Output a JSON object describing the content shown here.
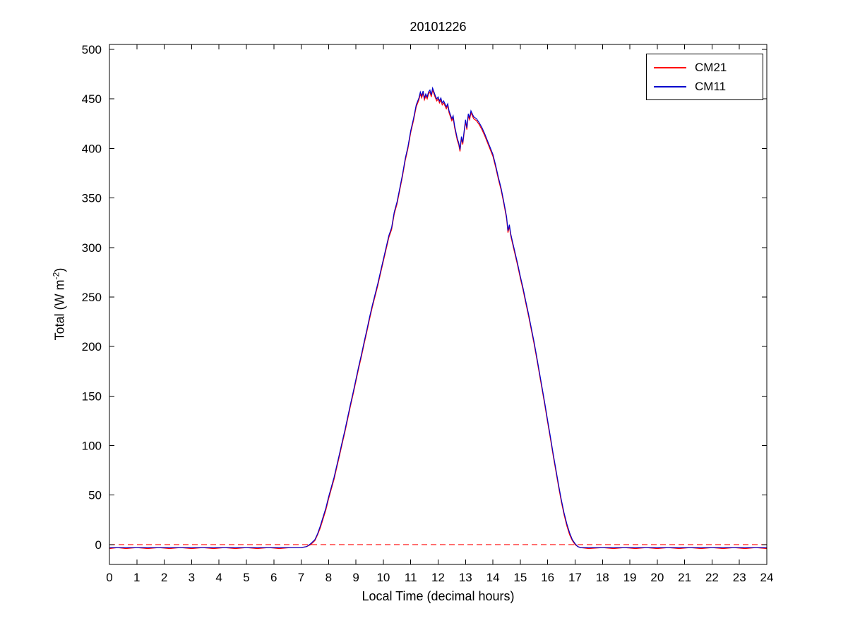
{
  "chart_data": {
    "type": "line",
    "title": "20101226",
    "xlabel": "Local Time (decimal hours)",
    "ylabel": "Total (W m^-2)",
    "ylabel_parts": {
      "prefix": "Total (W m",
      "sup": "-2",
      "suffix": ")"
    },
    "xlim": [
      0,
      24
    ],
    "ylim": [
      -20,
      505
    ],
    "xticks": [
      0,
      1,
      2,
      3,
      4,
      5,
      6,
      7,
      8,
      9,
      10,
      11,
      12,
      13,
      14,
      15,
      16,
      17,
      18,
      19,
      20,
      21,
      22,
      23,
      24
    ],
    "yticks": [
      0,
      50,
      100,
      150,
      200,
      250,
      300,
      350,
      400,
      450,
      500
    ],
    "grid": false,
    "background": "#ffffff",
    "axis_color": "#000000",
    "zero_line": {
      "y": 0,
      "color": "#ff0000",
      "style": "dashed"
    },
    "legend": {
      "position": "top-right",
      "border_color": "#000000",
      "entries": [
        {
          "label": "CM21",
          "color": "#ff0000"
        },
        {
          "label": "CM11",
          "color": "#0000cc"
        }
      ]
    },
    "series": [
      {
        "name": "CM21",
        "color": "#ff0000",
        "points": [
          [
            0,
            -4
          ],
          [
            0.3,
            -3
          ],
          [
            0.6,
            -4
          ],
          [
            1,
            -3
          ],
          [
            1.4,
            -4
          ],
          [
            1.8,
            -3
          ],
          [
            2.2,
            -4
          ],
          [
            2.6,
            -3
          ],
          [
            3,
            -4
          ],
          [
            3.4,
            -3
          ],
          [
            3.8,
            -4
          ],
          [
            4.2,
            -3
          ],
          [
            4.6,
            -4
          ],
          [
            5,
            -3
          ],
          [
            5.4,
            -4
          ],
          [
            5.8,
            -3
          ],
          [
            6.2,
            -4
          ],
          [
            6.6,
            -3
          ],
          [
            7,
            -3
          ],
          [
            7.2,
            -2
          ],
          [
            7.35,
            0
          ],
          [
            7.5,
            4
          ],
          [
            7.6,
            10
          ],
          [
            7.7,
            17
          ],
          [
            7.8,
            26
          ],
          [
            7.9,
            35
          ],
          [
            8,
            46
          ],
          [
            8.1,
            56
          ],
          [
            8.2,
            66
          ],
          [
            8.3,
            78
          ],
          [
            8.4,
            90
          ],
          [
            8.5,
            102
          ],
          [
            8.6,
            114
          ],
          [
            8.7,
            127
          ],
          [
            8.8,
            140
          ],
          [
            8.9,
            152
          ],
          [
            9,
            165
          ],
          [
            9.1,
            178
          ],
          [
            9.2,
            190
          ],
          [
            9.3,
            203
          ],
          [
            9.4,
            215
          ],
          [
            9.5,
            228
          ],
          [
            9.6,
            240
          ],
          [
            9.7,
            251
          ],
          [
            9.8,
            262
          ],
          [
            9.9,
            274
          ],
          [
            10,
            286
          ],
          [
            10.1,
            298
          ],
          [
            10.2,
            310
          ],
          [
            10.3,
            318
          ],
          [
            10.4,
            334
          ],
          [
            10.5,
            344
          ],
          [
            10.6,
            358
          ],
          [
            10.7,
            372
          ],
          [
            10.8,
            388
          ],
          [
            10.9,
            400
          ],
          [
            11,
            416
          ],
          [
            11.1,
            428
          ],
          [
            11.2,
            442
          ],
          [
            11.3,
            449
          ],
          [
            11.35,
            455
          ],
          [
            11.4,
            451
          ],
          [
            11.45,
            456
          ],
          [
            11.5,
            449
          ],
          [
            11.55,
            453
          ],
          [
            11.6,
            450
          ],
          [
            11.65,
            455
          ],
          [
            11.7,
            457
          ],
          [
            11.75,
            452
          ],
          [
            11.8,
            459
          ],
          [
            11.85,
            455
          ],
          [
            11.9,
            451
          ],
          [
            11.95,
            448
          ],
          [
            12,
            450
          ],
          [
            12.05,
            446
          ],
          [
            12.1,
            449
          ],
          [
            12.15,
            444
          ],
          [
            12.2,
            446
          ],
          [
            12.3,
            440
          ],
          [
            12.35,
            443
          ],
          [
            12.4,
            436
          ],
          [
            12.5,
            428
          ],
          [
            12.55,
            431
          ],
          [
            12.6,
            421
          ],
          [
            12.7,
            408
          ],
          [
            12.75,
            404
          ],
          [
            12.8,
            397
          ],
          [
            12.85,
            410
          ],
          [
            12.9,
            404
          ],
          [
            12.95,
            416
          ],
          [
            13,
            427
          ],
          [
            13.05,
            419
          ],
          [
            13.1,
            433
          ],
          [
            13.15,
            429
          ],
          [
            13.2,
            436
          ],
          [
            13.3,
            430
          ],
          [
            13.4,
            428
          ],
          [
            13.5,
            424
          ],
          [
            13.6,
            419
          ],
          [
            13.7,
            413
          ],
          [
            13.8,
            406
          ],
          [
            13.9,
            399
          ],
          [
            14,
            392
          ],
          [
            14.1,
            381
          ],
          [
            14.2,
            369
          ],
          [
            14.3,
            358
          ],
          [
            14.4,
            344
          ],
          [
            14.5,
            329
          ],
          [
            14.55,
            315
          ],
          [
            14.6,
            321
          ],
          [
            14.65,
            312
          ],
          [
            14.7,
            306
          ],
          [
            14.8,
            294
          ],
          [
            14.9,
            282
          ],
          [
            15,
            269
          ],
          [
            15.1,
            257
          ],
          [
            15.2,
            244
          ],
          [
            15.3,
            231
          ],
          [
            15.4,
            217
          ],
          [
            15.5,
            203
          ],
          [
            15.6,
            188
          ],
          [
            15.7,
            172
          ],
          [
            15.8,
            156
          ],
          [
            15.9,
            140
          ],
          [
            16,
            123
          ],
          [
            16.1,
            107
          ],
          [
            16.2,
            90
          ],
          [
            16.3,
            74
          ],
          [
            16.4,
            58
          ],
          [
            16.5,
            43
          ],
          [
            16.6,
            30
          ],
          [
            16.7,
            19
          ],
          [
            16.8,
            10
          ],
          [
            16.9,
            4
          ],
          [
            17,
            0
          ],
          [
            17.1,
            -2
          ],
          [
            17.2,
            -3
          ],
          [
            17.5,
            -4
          ],
          [
            18,
            -3
          ],
          [
            18.4,
            -4
          ],
          [
            18.8,
            -3
          ],
          [
            19.2,
            -4
          ],
          [
            19.6,
            -3
          ],
          [
            20,
            -4
          ],
          [
            20.4,
            -3
          ],
          [
            20.8,
            -4
          ],
          [
            21.2,
            -3
          ],
          [
            21.6,
            -4
          ],
          [
            22,
            -3
          ],
          [
            22.4,
            -4
          ],
          [
            22.8,
            -3
          ],
          [
            23.2,
            -4
          ],
          [
            23.6,
            -3
          ],
          [
            24,
            -4
          ]
        ]
      },
      {
        "name": "CM11",
        "color": "#0000cc",
        "points": [
          [
            0,
            -3
          ],
          [
            0.3,
            -3
          ],
          [
            0.6,
            -3
          ],
          [
            1,
            -3
          ],
          [
            1.4,
            -3
          ],
          [
            1.8,
            -3
          ],
          [
            2.2,
            -3
          ],
          [
            2.6,
            -3
          ],
          [
            3,
            -3
          ],
          [
            3.4,
            -3
          ],
          [
            3.8,
            -3
          ],
          [
            4.2,
            -3
          ],
          [
            4.6,
            -3
          ],
          [
            5,
            -3
          ],
          [
            5.4,
            -3
          ],
          [
            5.8,
            -3
          ],
          [
            6.2,
            -3
          ],
          [
            6.6,
            -3
          ],
          [
            7,
            -3
          ],
          [
            7.2,
            -2
          ],
          [
            7.35,
            1
          ],
          [
            7.5,
            5
          ],
          [
            7.6,
            11
          ],
          [
            7.7,
            19
          ],
          [
            7.8,
            28
          ],
          [
            7.9,
            37
          ],
          [
            8,
            48
          ],
          [
            8.1,
            58
          ],
          [
            8.2,
            68
          ],
          [
            8.3,
            80
          ],
          [
            8.4,
            92
          ],
          [
            8.5,
            104
          ],
          [
            8.6,
            116
          ],
          [
            8.7,
            129
          ],
          [
            8.8,
            142
          ],
          [
            8.9,
            154
          ],
          [
            9,
            167
          ],
          [
            9.1,
            180
          ],
          [
            9.2,
            192
          ],
          [
            9.3,
            205
          ],
          [
            9.4,
            217
          ],
          [
            9.5,
            230
          ],
          [
            9.6,
            242
          ],
          [
            9.7,
            253
          ],
          [
            9.8,
            264
          ],
          [
            9.9,
            276
          ],
          [
            10,
            288
          ],
          [
            10.1,
            300
          ],
          [
            10.2,
            312
          ],
          [
            10.3,
            320
          ],
          [
            10.4,
            336
          ],
          [
            10.5,
            346
          ],
          [
            10.6,
            360
          ],
          [
            10.7,
            374
          ],
          [
            10.8,
            390
          ],
          [
            10.9,
            402
          ],
          [
            11,
            418
          ],
          [
            11.1,
            430
          ],
          [
            11.2,
            444
          ],
          [
            11.3,
            451
          ],
          [
            11.35,
            457
          ],
          [
            11.4,
            453
          ],
          [
            11.45,
            458
          ],
          [
            11.5,
            451
          ],
          [
            11.55,
            455
          ],
          [
            11.6,
            452
          ],
          [
            11.65,
            457
          ],
          [
            11.7,
            459
          ],
          [
            11.75,
            454
          ],
          [
            11.8,
            461
          ],
          [
            11.85,
            457
          ],
          [
            11.9,
            453
          ],
          [
            11.95,
            450
          ],
          [
            12,
            452
          ],
          [
            12.05,
            448
          ],
          [
            12.1,
            451
          ],
          [
            12.15,
            446
          ],
          [
            12.2,
            448
          ],
          [
            12.3,
            442
          ],
          [
            12.35,
            445
          ],
          [
            12.4,
            438
          ],
          [
            12.5,
            430
          ],
          [
            12.55,
            433
          ],
          [
            12.6,
            423
          ],
          [
            12.7,
            410
          ],
          [
            12.75,
            406
          ],
          [
            12.8,
            399
          ],
          [
            12.85,
            412
          ],
          [
            12.9,
            406
          ],
          [
            12.95,
            418
          ],
          [
            13,
            429
          ],
          [
            13.05,
            421
          ],
          [
            13.1,
            435
          ],
          [
            13.15,
            431
          ],
          [
            13.2,
            438
          ],
          [
            13.3,
            432
          ],
          [
            13.4,
            430
          ],
          [
            13.5,
            426
          ],
          [
            13.6,
            421
          ],
          [
            13.7,
            415
          ],
          [
            13.8,
            408
          ],
          [
            13.9,
            401
          ],
          [
            14,
            394
          ],
          [
            14.1,
            383
          ],
          [
            14.2,
            371
          ],
          [
            14.3,
            360
          ],
          [
            14.4,
            346
          ],
          [
            14.5,
            331
          ],
          [
            14.55,
            317
          ],
          [
            14.6,
            323
          ],
          [
            14.65,
            314
          ],
          [
            14.7,
            308
          ],
          [
            14.8,
            296
          ],
          [
            14.9,
            284
          ],
          [
            15,
            271
          ],
          [
            15.1,
            259
          ],
          [
            15.2,
            246
          ],
          [
            15.3,
            233
          ],
          [
            15.4,
            219
          ],
          [
            15.5,
            205
          ],
          [
            15.6,
            190
          ],
          [
            15.7,
            174
          ],
          [
            15.8,
            158
          ],
          [
            15.9,
            142
          ],
          [
            16,
            125
          ],
          [
            16.1,
            109
          ],
          [
            16.2,
            92
          ],
          [
            16.3,
            76
          ],
          [
            16.4,
            60
          ],
          [
            16.5,
            45
          ],
          [
            16.6,
            32
          ],
          [
            16.7,
            21
          ],
          [
            16.8,
            12
          ],
          [
            16.9,
            5
          ],
          [
            17,
            1
          ],
          [
            17.1,
            -2
          ],
          [
            17.2,
            -3
          ],
          [
            17.5,
            -3
          ],
          [
            18,
            -3
          ],
          [
            18.4,
            -3
          ],
          [
            18.8,
            -3
          ],
          [
            19.2,
            -3
          ],
          [
            19.6,
            -3
          ],
          [
            20,
            -3
          ],
          [
            20.4,
            -3
          ],
          [
            20.8,
            -3
          ],
          [
            21.2,
            -3
          ],
          [
            21.6,
            -3
          ],
          [
            22,
            -3
          ],
          [
            22.4,
            -3
          ],
          [
            22.8,
            -3
          ],
          [
            23.2,
            -3
          ],
          [
            23.6,
            -3
          ],
          [
            24,
            -3
          ]
        ]
      }
    ]
  }
}
